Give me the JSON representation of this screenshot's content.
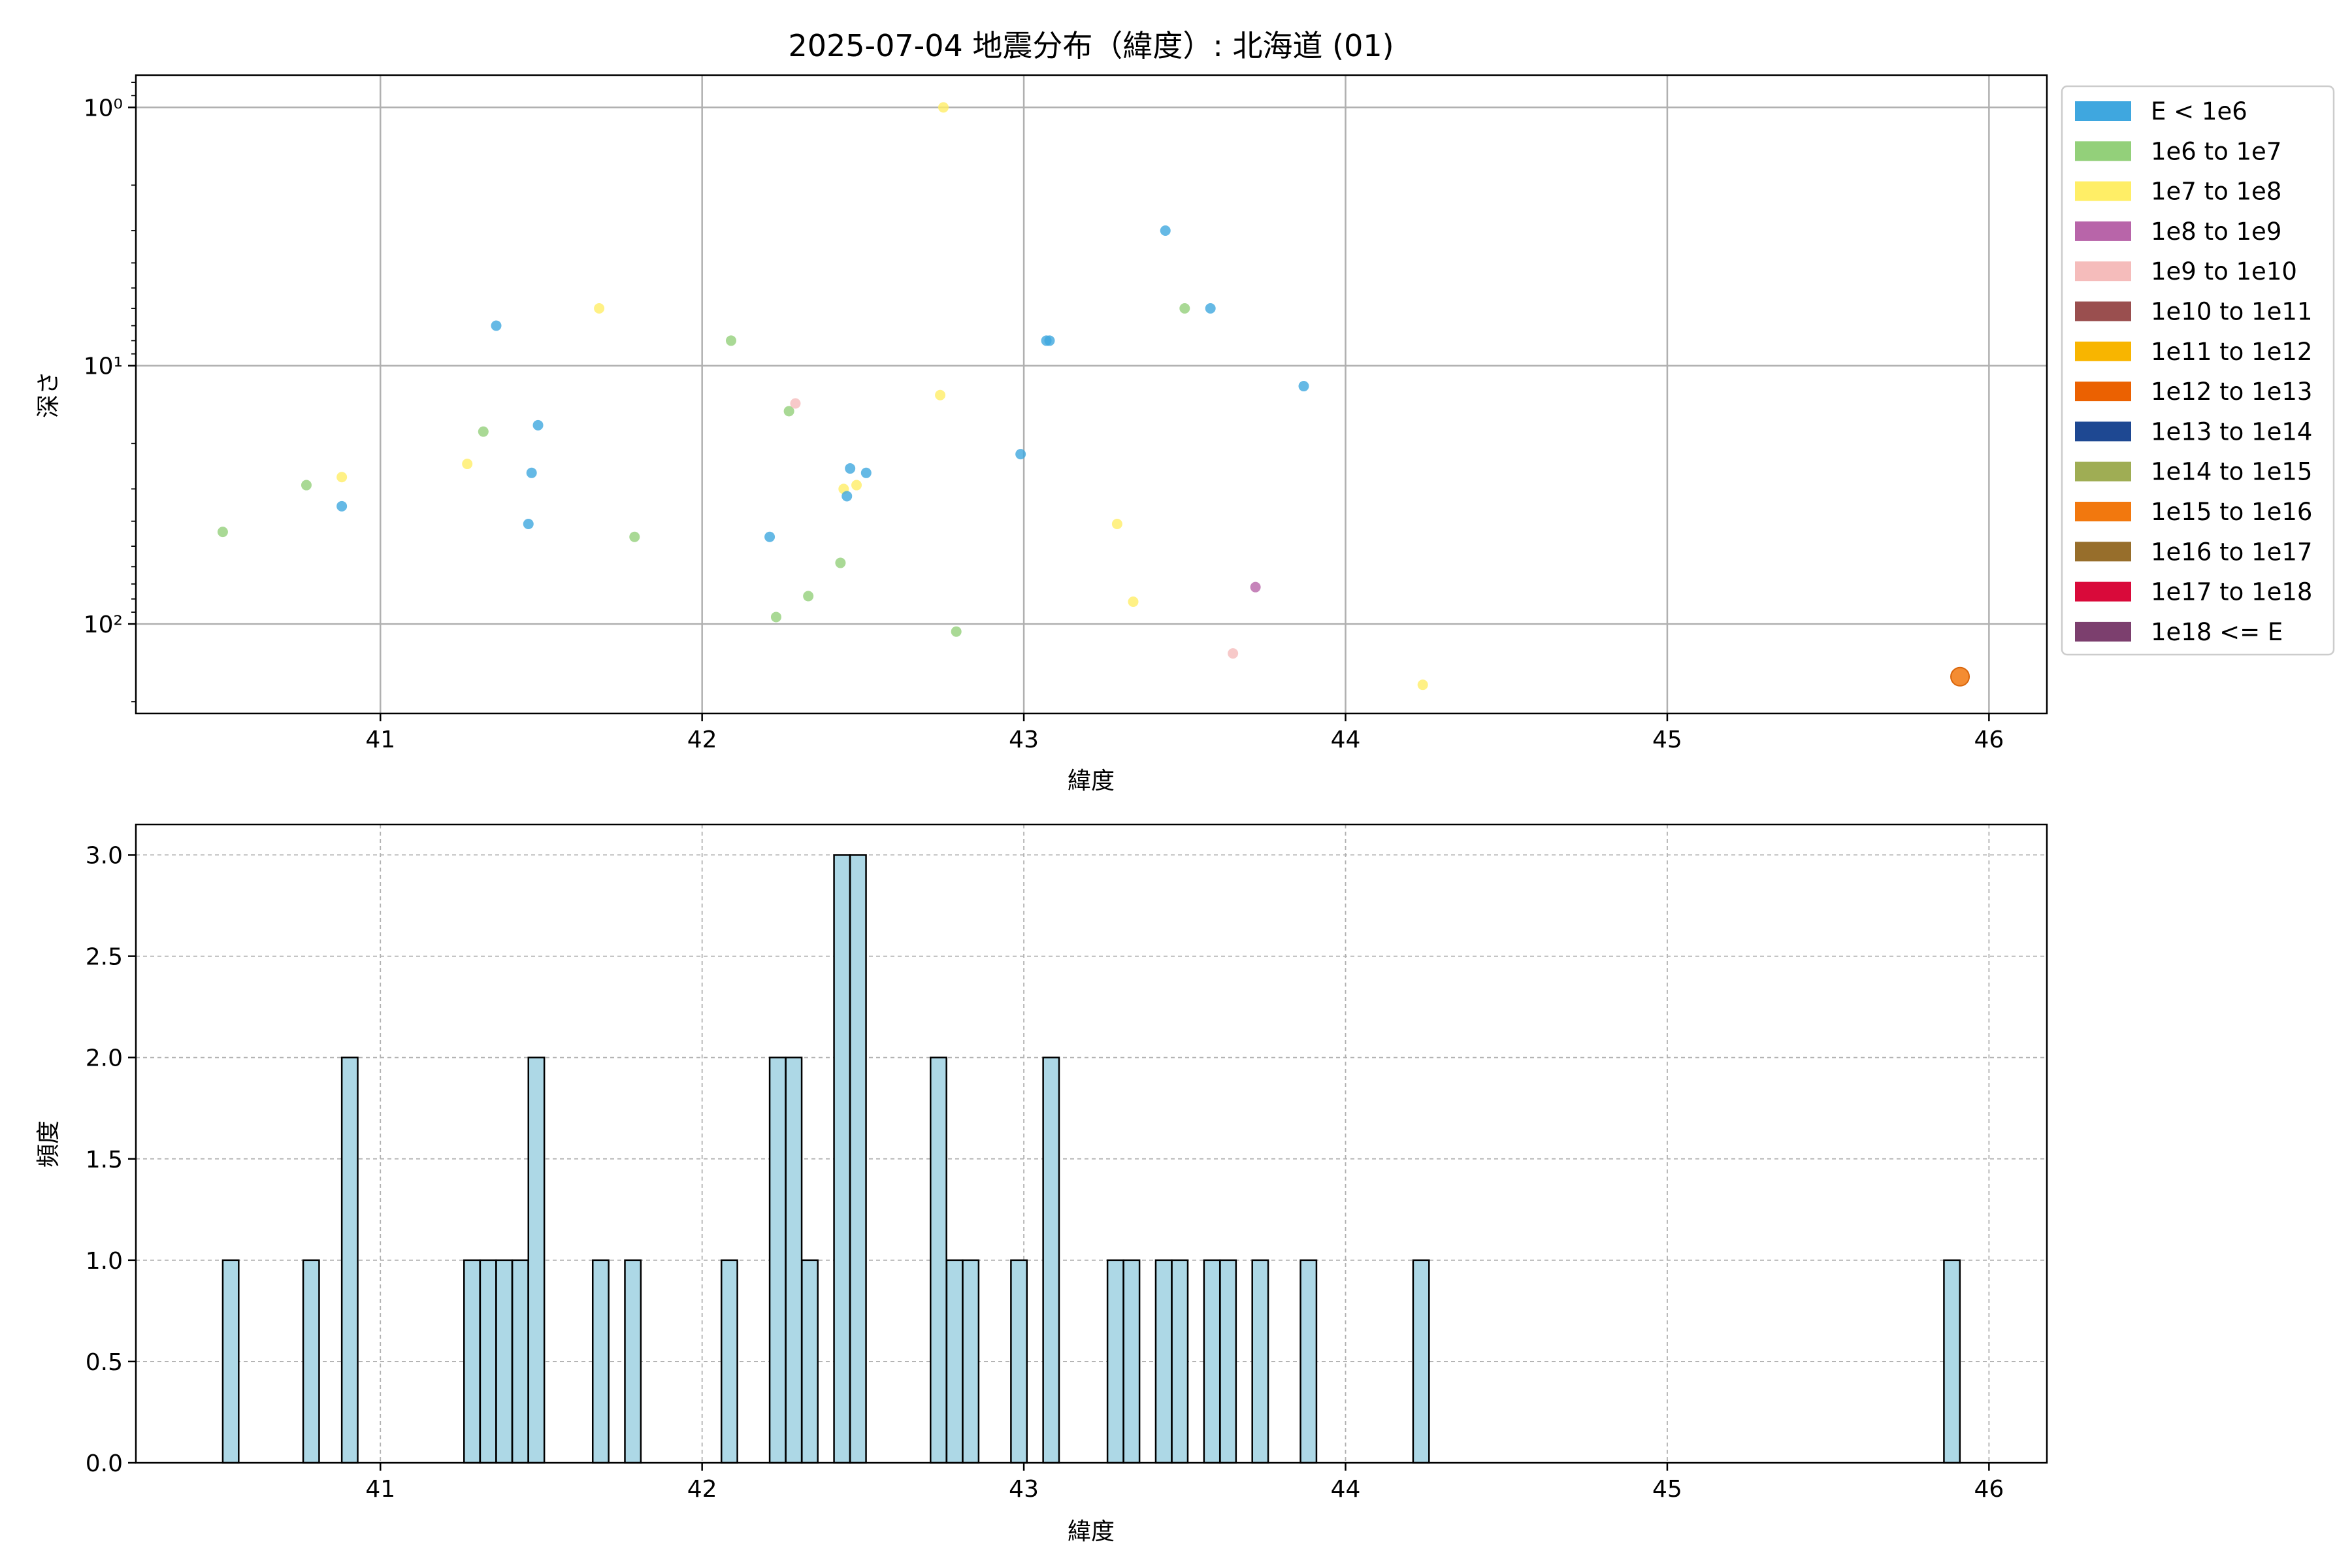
{
  "title": "2025-07-04 地震分布（緯度）: 北海道 (01)",
  "colors": {
    "hist_fill": "#add8e6",
    "hist_edge": "#000000",
    "grid": "#b0b0b0",
    "axes": "#000000"
  },
  "legend": {
    "placement": "outside-right",
    "entries": [
      {
        "label": "E < 1e6",
        "color": "#3fa7df"
      },
      {
        "label": "1e6 to 1e7",
        "color": "#93d07a"
      },
      {
        "label": "1e7 to 1e8",
        "color": "#ffee66"
      },
      {
        "label": "1e8 to 1e9",
        "color": "#b865a9"
      },
      {
        "label": "1e9 to 1e10",
        "color": "#f5bcbb"
      },
      {
        "label": "1e10 to 1e11",
        "color": "#9a4f4f"
      },
      {
        "label": "1e11 to 1e12",
        "color": "#f8b500"
      },
      {
        "label": "1e12 to 1e13",
        "color": "#eb6101"
      },
      {
        "label": "1e13 to 1e14",
        "color": "#1e4892"
      },
      {
        "label": "1e14 to 1e15",
        "color": "#9fad54"
      },
      {
        "label": "1e15 to 1e16",
        "color": "#f2780e"
      },
      {
        "label": "1e16 to 1e17",
        "color": "#976e2b"
      },
      {
        "label": "1e17 to 1e18",
        "color": "#d90a3a"
      },
      {
        "label": "1e18 <= E",
        "color": "#7c3f6e"
      }
    ]
  },
  "chart_data": [
    {
      "type": "scatter",
      "xlabel": "緯度",
      "ylabel": "深さ",
      "xlim": [
        40.24,
        46.18
      ],
      "ylim": [
        0.75,
        222
      ],
      "y_scale": "log",
      "y_inverted": true,
      "grid": true,
      "x_ticks": [
        41,
        42,
        43,
        44,
        45,
        46
      ],
      "y_ticks": [
        {
          "value": 1,
          "label": "10⁰"
        },
        {
          "value": 10,
          "label": "10¹"
        },
        {
          "value": 100,
          "label": "10²"
        }
      ],
      "points": [
        {
          "x": 40.51,
          "y": 44,
          "cls": 1
        },
        {
          "x": 40.77,
          "y": 29,
          "cls": 1
        },
        {
          "x": 40.88,
          "y": 27,
          "cls": 2
        },
        {
          "x": 40.88,
          "y": 35,
          "cls": 0
        },
        {
          "x": 41.27,
          "y": 24,
          "cls": 2
        },
        {
          "x": 41.32,
          "y": 18,
          "cls": 1
        },
        {
          "x": 41.36,
          "y": 7,
          "cls": 0
        },
        {
          "x": 41.46,
          "y": 41,
          "cls": 0
        },
        {
          "x": 41.47,
          "y": 26,
          "cls": 0
        },
        {
          "x": 41.49,
          "y": 17,
          "cls": 0
        },
        {
          "x": 41.68,
          "y": 6,
          "cls": 2
        },
        {
          "x": 41.79,
          "y": 46,
          "cls": 1
        },
        {
          "x": 42.09,
          "y": 8,
          "cls": 1
        },
        {
          "x": 42.21,
          "y": 46,
          "cls": 0
        },
        {
          "x": 42.23,
          "y": 94,
          "cls": 1
        },
        {
          "x": 42.27,
          "y": 15,
          "cls": 1
        },
        {
          "x": 42.29,
          "y": 14,
          "cls": 4
        },
        {
          "x": 42.33,
          "y": 78,
          "cls": 1
        },
        {
          "x": 42.43,
          "y": 58,
          "cls": 1
        },
        {
          "x": 42.44,
          "y": 30,
          "cls": 2
        },
        {
          "x": 42.45,
          "y": 32,
          "cls": 0
        },
        {
          "x": 42.46,
          "y": 25,
          "cls": 0
        },
        {
          "x": 42.48,
          "y": 29,
          "cls": 2
        },
        {
          "x": 42.51,
          "y": 26,
          "cls": 0
        },
        {
          "x": 42.74,
          "y": 13,
          "cls": 2
        },
        {
          "x": 42.75,
          "y": 1,
          "cls": 2
        },
        {
          "x": 42.79,
          "y": 107,
          "cls": 1
        },
        {
          "x": 42.99,
          "y": 22,
          "cls": 0
        },
        {
          "x": 43.07,
          "y": 8,
          "cls": 0
        },
        {
          "x": 43.08,
          "y": 8,
          "cls": 0
        },
        {
          "x": 43.29,
          "y": 41,
          "cls": 2
        },
        {
          "x": 43.34,
          "y": 82,
          "cls": 2
        },
        {
          "x": 43.44,
          "y": 3,
          "cls": 0
        },
        {
          "x": 43.5,
          "y": 6,
          "cls": 1
        },
        {
          "x": 43.58,
          "y": 6,
          "cls": 0
        },
        {
          "x": 43.65,
          "y": 130,
          "cls": 4
        },
        {
          "x": 43.72,
          "y": 72,
          "cls": 3
        },
        {
          "x": 43.87,
          "y": 12,
          "cls": 0
        },
        {
          "x": 44.24,
          "y": 172,
          "cls": 2
        },
        {
          "x": 45.91,
          "y": 160,
          "cls": 10
        }
      ]
    },
    {
      "type": "bar",
      "xlabel": "緯度",
      "ylabel": "頻度",
      "xlim": [
        40.24,
        46.18
      ],
      "ylim": [
        0,
        3.15
      ],
      "grid": true,
      "x_ticks": [
        41,
        42,
        43,
        44,
        45,
        46
      ],
      "y_ticks": [
        "0.0",
        "0.5",
        "1.0",
        "1.5",
        "2.0",
        "2.5",
        "3.0"
      ],
      "bin_width": 0.0495,
      "bins": [
        {
          "x": 40.51,
          "count": 1
        },
        {
          "x": 40.76,
          "count": 1
        },
        {
          "x": 40.88,
          "count": 2
        },
        {
          "x": 41.26,
          "count": 1
        },
        {
          "x": 41.31,
          "count": 1
        },
        {
          "x": 41.36,
          "count": 1
        },
        {
          "x": 41.41,
          "count": 1
        },
        {
          "x": 41.46,
          "count": 2
        },
        {
          "x": 41.66,
          "count": 1
        },
        {
          "x": 41.76,
          "count": 1
        },
        {
          "x": 42.06,
          "count": 1
        },
        {
          "x": 42.21,
          "count": 2
        },
        {
          "x": 42.26,
          "count": 2
        },
        {
          "x": 42.31,
          "count": 1
        },
        {
          "x": 42.41,
          "count": 3
        },
        {
          "x": 42.46,
          "count": 3
        },
        {
          "x": 42.71,
          "count": 2
        },
        {
          "x": 42.76,
          "count": 1
        },
        {
          "x": 42.81,
          "count": 1
        },
        {
          "x": 42.96,
          "count": 1
        },
        {
          "x": 43.06,
          "count": 2
        },
        {
          "x": 43.26,
          "count": 1
        },
        {
          "x": 43.31,
          "count": 1
        },
        {
          "x": 43.41,
          "count": 1
        },
        {
          "x": 43.46,
          "count": 1
        },
        {
          "x": 43.56,
          "count": 1
        },
        {
          "x": 43.61,
          "count": 1
        },
        {
          "x": 43.71,
          "count": 1
        },
        {
          "x": 43.86,
          "count": 1
        },
        {
          "x": 44.21,
          "count": 1
        },
        {
          "x": 45.86,
          "count": 1
        }
      ]
    }
  ]
}
